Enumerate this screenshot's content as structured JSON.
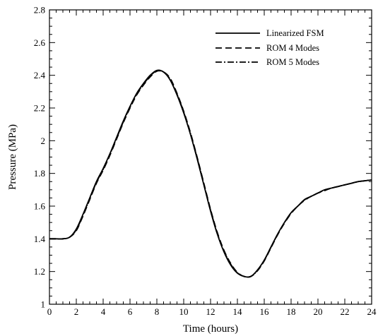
{
  "chart_data": {
    "type": "line",
    "title": "",
    "xlabel": "Time (hours)",
    "ylabel": "Pressure (MPa)",
    "xlim": [
      0,
      24
    ],
    "ylim": [
      1,
      2.8
    ],
    "xticks": [
      0,
      2,
      4,
      6,
      8,
      10,
      12,
      14,
      16,
      18,
      20,
      22,
      24
    ],
    "yticks": [
      1,
      1.2,
      1.4,
      1.6,
      1.8,
      2,
      2.2,
      2.4,
      2.6,
      2.8
    ],
    "xtick_labels": [
      "0",
      "2",
      "4",
      "6",
      "8",
      "10",
      "12",
      "14",
      "16",
      "18",
      "20",
      "22",
      "24"
    ],
    "ytick_labels": [
      "1",
      "1.2",
      "1.4",
      "1.6",
      "1.8",
      "2",
      "2.2",
      "2.4",
      "2.6",
      "2.8"
    ],
    "grid": false,
    "legend_position": "top-right",
    "series": [
      {
        "name": "Linearized FSM",
        "style": "solid",
        "color": "#000000",
        "x": [
          0,
          0.5,
          1,
          1.5,
          2,
          2.5,
          3,
          3.5,
          4,
          4.5,
          5,
          5.5,
          6,
          6.5,
          7,
          7.5,
          8,
          8.5,
          9,
          9.5,
          10,
          10.5,
          11,
          11.5,
          12,
          12.5,
          13,
          13.5,
          14,
          14.5,
          15,
          15.5,
          16,
          16.5,
          17,
          17.5,
          18,
          18.5,
          19,
          19.5,
          20,
          20.5,
          21,
          21.5,
          22,
          22.5,
          23,
          23.5,
          24
        ],
        "y": [
          1.4,
          1.4,
          1.4,
          1.41,
          1.46,
          1.55,
          1.65,
          1.75,
          1.83,
          1.92,
          2.02,
          2.12,
          2.21,
          2.29,
          2.35,
          2.4,
          2.43,
          2.42,
          2.37,
          2.28,
          2.17,
          2.04,
          1.89,
          1.73,
          1.57,
          1.43,
          1.32,
          1.24,
          1.19,
          1.17,
          1.17,
          1.21,
          1.27,
          1.35,
          1.43,
          1.5,
          1.56,
          1.6,
          1.64,
          1.66,
          1.68,
          1.7,
          1.71,
          1.72,
          1.73,
          1.74,
          1.75,
          1.755,
          1.76
        ]
      },
      {
        "name": "ROM 4 Modes",
        "style": "dashed",
        "color": "#000000",
        "x": [
          0,
          0.5,
          1,
          1.5,
          2,
          2.5,
          3,
          3.5,
          4,
          4.5,
          5,
          5.5,
          6,
          6.5,
          7,
          7.5,
          8,
          8.5,
          9,
          9.5,
          10,
          10.5,
          11,
          11.5,
          12,
          12.5,
          13,
          13.5,
          14,
          14.5,
          15,
          15.5,
          16,
          16.5,
          17,
          17.5,
          18,
          18.5,
          19,
          19.5,
          20,
          20.5,
          21,
          21.5,
          22,
          22.5,
          23,
          23.5,
          24
        ],
        "y": [
          1.4,
          1.4,
          1.4,
          1.41,
          1.45,
          1.54,
          1.64,
          1.74,
          1.82,
          1.91,
          2.01,
          2.11,
          2.2,
          2.28,
          2.34,
          2.39,
          2.425,
          2.42,
          2.38,
          2.29,
          2.18,
          2.05,
          1.9,
          1.74,
          1.58,
          1.44,
          1.33,
          1.25,
          1.195,
          1.17,
          1.17,
          1.205,
          1.265,
          1.345,
          1.425,
          1.495,
          1.555,
          1.6,
          1.635,
          1.66,
          1.68,
          1.695,
          1.71,
          1.72,
          1.73,
          1.74,
          1.75,
          1.755,
          1.76
        ]
      },
      {
        "name": "ROM 5 Modes",
        "style": "dashdot",
        "color": "#000000",
        "x": [
          0,
          0.5,
          1,
          1.5,
          2,
          2.5,
          3,
          3.5,
          4,
          4.5,
          5,
          5.5,
          6,
          6.5,
          7,
          7.5,
          8,
          8.5,
          9,
          9.5,
          10,
          10.5,
          11,
          11.5,
          12,
          12.5,
          13,
          13.5,
          14,
          14.5,
          15,
          15.5,
          16,
          16.5,
          17,
          17.5,
          18,
          18.5,
          19,
          19.5,
          20,
          20.5,
          21,
          21.5,
          22,
          22.5,
          23,
          23.5,
          24
        ],
        "y": [
          1.4,
          1.4,
          1.4,
          1.41,
          1.455,
          1.545,
          1.645,
          1.745,
          1.825,
          1.915,
          2.015,
          2.115,
          2.205,
          2.285,
          2.345,
          2.395,
          2.428,
          2.42,
          2.375,
          2.285,
          2.175,
          2.045,
          1.895,
          1.735,
          1.575,
          1.435,
          1.325,
          1.245,
          1.192,
          1.17,
          1.17,
          1.207,
          1.268,
          1.348,
          1.428,
          1.498,
          1.558,
          1.6,
          1.638,
          1.66,
          1.68,
          1.698,
          1.71,
          1.72,
          1.73,
          1.74,
          1.75,
          1.755,
          1.76
        ]
      }
    ]
  }
}
